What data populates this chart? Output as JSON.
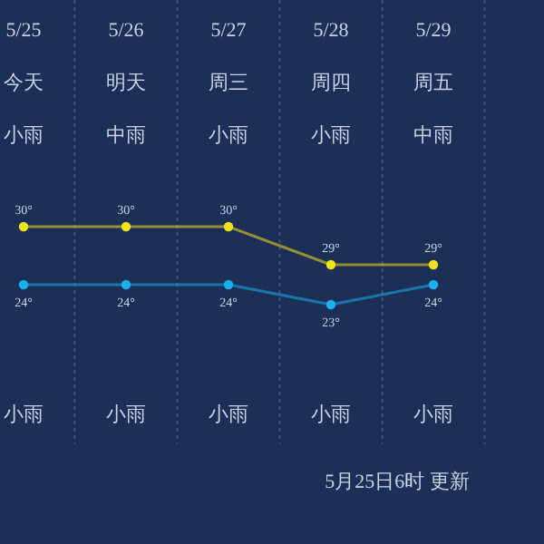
{
  "chart_data": [
    {
      "type": "line",
      "categories": [
        "5/25",
        "5/26",
        "5/27",
        "5/28",
        "5/29"
      ],
      "series": [
        {
          "color": "#f2e21a",
          "values": [
            30,
            30,
            30,
            29,
            29
          ],
          "value_labels": [
            "30°",
            "30°",
            "30°",
            "29°",
            "29°"
          ]
        }
      ],
      "grid": "x",
      "marker": "circle",
      "annotations": [
        "今天",
        "明天",
        "周三",
        "周四",
        "周五",
        "小雨",
        "中雨",
        "小雨",
        "小雨",
        "中雨",
        "小雨",
        "小雨",
        "小雨",
        "小雨",
        "小雨",
        "5月25日6时 更新"
      ]
    },
    {
      "type": "line",
      "categories": [
        null,
        null,
        null,
        null,
        null
      ],
      "series": [
        {
          "color": "#1ab0ee",
          "values": [
            24,
            24,
            24,
            23,
            24
          ],
          "value_labels": [
            "24°",
            "24°",
            "24°",
            "23°",
            "24°"
          ]
        }
      ],
      "marker": "circle"
    }
  ]
}
